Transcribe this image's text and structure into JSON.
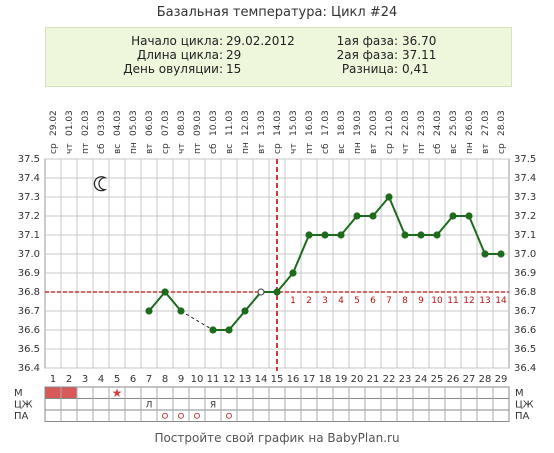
{
  "title": "Базальная температура: Цикл #24",
  "info": {
    "start_label": "Начало цикла:",
    "start_value": "29.02.2012",
    "length_label": "Длина цикла:",
    "length_value": "29",
    "ovulation_label": "День овуляции:",
    "ovulation_value": "15",
    "phase1_label": "1ая фаза:",
    "phase1_value": "36.70",
    "phase2_label": "2ая фаза:",
    "phase2_value": "37.11",
    "diff_label": "Разница:",
    "diff_value": "0,41"
  },
  "footer": "Постройте свой график на BabyPlan.ru",
  "colors": {
    "line": "#1e6b1e",
    "grid": "#c8c8c8",
    "ovulation": "#c01010",
    "coverline": "#c01010",
    "menses": "#d65a5a",
    "info_bg": "#eef6dc"
  },
  "icons": {
    "moon": "crescent-moon-icon",
    "star": "star-icon"
  },
  "chart_data": {
    "type": "line",
    "ylim": [
      36.4,
      37.5
    ],
    "yticks": [
      "36.4",
      "36.5",
      "36.6",
      "36.7",
      "36.8",
      "36.9",
      "37.0",
      "37.1",
      "37.2",
      "37.3",
      "37.4",
      "37.5"
    ],
    "days": [
      1,
      2,
      3,
      4,
      5,
      6,
      7,
      8,
      9,
      10,
      11,
      12,
      13,
      14,
      15,
      16,
      17,
      18,
      19,
      20,
      21,
      22,
      23,
      24,
      25,
      26,
      27,
      28,
      29
    ],
    "weekdays": [
      "ср",
      "чт",
      "пт",
      "сб",
      "вс",
      "пн",
      "вт",
      "ср",
      "чт",
      "пт",
      "сб",
      "вс",
      "пн",
      "вт",
      "ср",
      "чт",
      "пт",
      "сб",
      "вс",
      "пн",
      "вт",
      "ср",
      "чт",
      "пт",
      "сб",
      "вс",
      "пн",
      "вт",
      "ср"
    ],
    "dates": [
      "29.02",
      "01.03",
      "02.03",
      "03.03",
      "04.03",
      "05.03",
      "06.03",
      "07.03",
      "08.03",
      "09.03",
      "10.03",
      "11.03",
      "12.03",
      "13.03",
      "14.03",
      "15.03",
      "16.03",
      "17.03",
      "18.03",
      "19.03",
      "20.03",
      "21.03",
      "22.03",
      "23.03",
      "24.03",
      "25.03",
      "26.03",
      "27.03",
      "28.03"
    ],
    "temperatures": [
      null,
      null,
      null,
      null,
      null,
      null,
      36.7,
      36.8,
      36.7,
      null,
      36.6,
      36.6,
      36.7,
      36.8,
      36.8,
      36.9,
      37.1,
      37.1,
      37.1,
      37.2,
      37.2,
      37.3,
      37.1,
      37.1,
      37.1,
      37.2,
      37.2,
      37.0,
      37.0
    ],
    "open_points": [
      14
    ],
    "coverline": 36.8,
    "ovulation_day": 15,
    "luteal_labels": [
      "1",
      "2",
      "3",
      "4",
      "5",
      "6",
      "7",
      "8",
      "9",
      "10",
      "11",
      "12",
      "13",
      "14"
    ],
    "rows": {
      "labels": [
        "М",
        "ЦЖ",
        "ПА"
      ],
      "menses_days": [
        1,
        2
      ],
      "star_day": 5,
      "cm": [
        {
          "day": 7,
          "text": "Л"
        },
        {
          "day": 11,
          "text": "Я"
        }
      ],
      "intercourse_days": [
        8,
        9,
        10,
        12
      ]
    }
  }
}
